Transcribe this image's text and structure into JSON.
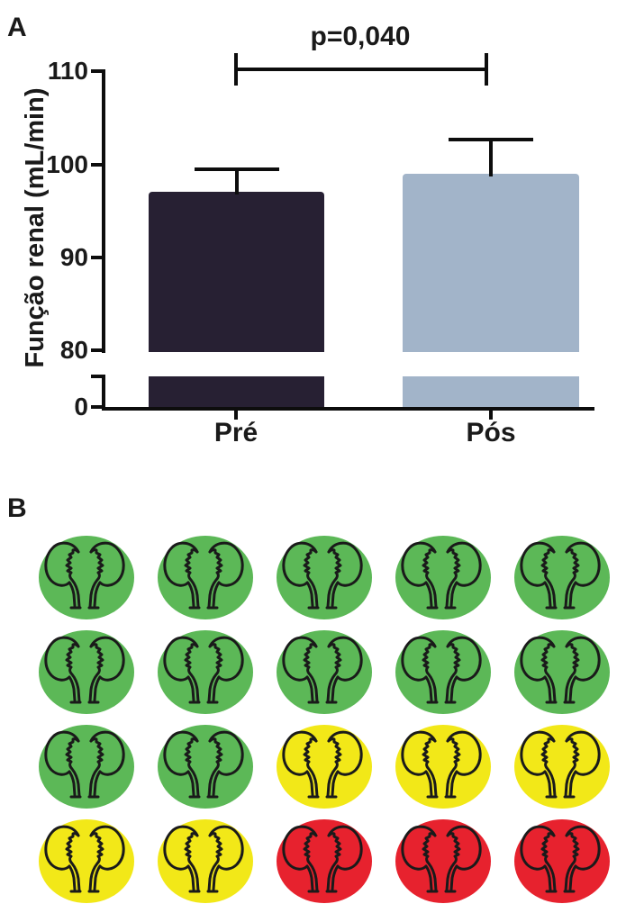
{
  "panel_a": {
    "label": "A",
    "p_value_label": "p=0,040",
    "y_axis_label": "Função renal (mL/min)",
    "y_ticks": [
      "110",
      "100",
      "90",
      "80",
      "0"
    ],
    "x_categories": [
      "Pré",
      "Pós"
    ]
  },
  "panel_b": {
    "label": "B",
    "colors": {
      "green": "#5cb857",
      "yellow": "#f2e818",
      "red": "#e7222e"
    },
    "outline_color": "#1a1a1a",
    "grid": [
      [
        "green",
        "green",
        "green",
        "green",
        "green"
      ],
      [
        "green",
        "green",
        "green",
        "green",
        "green"
      ],
      [
        "green",
        "green",
        "yellow",
        "yellow",
        "yellow"
      ],
      [
        "yellow",
        "yellow",
        "red",
        "red",
        "red"
      ]
    ]
  },
  "chart_data": [
    {
      "type": "bar",
      "panel": "A",
      "title": "",
      "categories": [
        "Pré",
        "Pós"
      ],
      "series": [
        {
          "name": "Função renal",
          "values": [
            97,
            99
          ]
        }
      ],
      "error_upper": [
        2.5,
        3.7
      ],
      "xlabel": "",
      "ylabel": "Função renal (mL/min)",
      "yticks": [
        110,
        100,
        90,
        80,
        0
      ],
      "ylim": [
        0,
        110
      ],
      "axis_break_between": [
        0,
        80
      ],
      "annotation": "p=0,040",
      "bar_colors": [
        "#272033",
        "#a2b4c9"
      ],
      "grid": false,
      "legend": false
    },
    {
      "type": "table",
      "panel": "B",
      "title": "",
      "rows": 4,
      "cols": 5,
      "cells": [
        [
          "green",
          "green",
          "green",
          "green",
          "green"
        ],
        [
          "green",
          "green",
          "green",
          "green",
          "green"
        ],
        [
          "green",
          "green",
          "yellow",
          "yellow",
          "yellow"
        ],
        [
          "yellow",
          "yellow",
          "red",
          "red",
          "red"
        ]
      ],
      "counts": {
        "green": 12,
        "yellow": 5,
        "red": 3
      }
    }
  ]
}
